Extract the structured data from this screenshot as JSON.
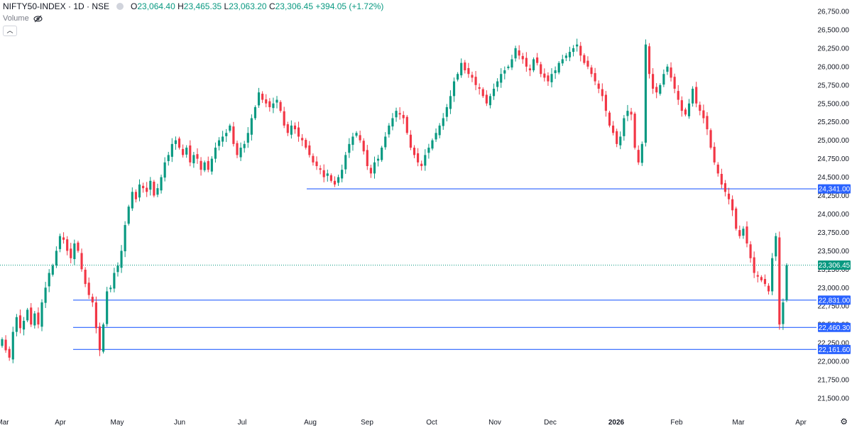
{
  "header": {
    "symbol_line": "NIFTY50-INDEX · 1D · NSE",
    "open_label": "O",
    "open": "23,064.40",
    "high_label": "H",
    "high": "23,465.35",
    "low_label": "L",
    "low": "23,063.20",
    "close_label": "C",
    "close": "23,306.45",
    "change": "+394.05 (+1.72%)"
  },
  "volume_label": "Volume",
  "collapse_icon": "chevron-up-icon",
  "settings_icon": "gear-icon",
  "colors": {
    "up": "#089981",
    "down": "#f23645",
    "level_line": "#2962ff",
    "price_tag": "#089981"
  },
  "chart_data": {
    "type": "candlestick",
    "y_range": [
      21375,
      26800
    ],
    "y_ticks": [
      "26,750.00",
      "26,500.00",
      "26,250.00",
      "26,000.00",
      "25,750.00",
      "25,500.00",
      "25,250.00",
      "25,000.00",
      "24,750.00",
      "24,500.00",
      "24,250.00",
      "24,000.00",
      "23,750.00",
      "23,500.00",
      "23,250.00",
      "23,000.00",
      "22,750.00",
      "22,500.00",
      "22,250.00",
      "22,000.00",
      "21,750.00",
      "21,500.00"
    ],
    "x_labels": [
      "Mar",
      "Apr",
      "May",
      "Jun",
      "Jul",
      "Aug",
      "Sep",
      "Oct",
      "Nov",
      "Dec",
      "2026",
      "Feb",
      "Mar",
      "Apr"
    ],
    "current_price": {
      "value": 23306.45,
      "label": "23,306.45"
    },
    "horizontal_levels": [
      {
        "value": 24341.0,
        "label": "24,341.00",
        "from": "Aug"
      },
      {
        "value": 22831.0,
        "label": "22,831.00",
        "from": "Apr"
      },
      {
        "value": 22460.3,
        "label": "22,460.30",
        "from": "Apr"
      },
      {
        "value": 22161.6,
        "label": "22,161.60",
        "from": "Apr"
      }
    ],
    "closes": [
      22300,
      22150,
      22050,
      22400,
      22600,
      22450,
      22550,
      22700,
      22500,
      22650,
      22500,
      22800,
      23000,
      23200,
      23300,
      23500,
      23700,
      23650,
      23500,
      23400,
      23600,
      23500,
      23250,
      23050,
      22900,
      22800,
      22450,
      22150,
      22500,
      22950,
      23000,
      23200,
      23300,
      23500,
      23850,
      24100,
      24300,
      24200,
      24400,
      24350,
      24300,
      24450,
      24250,
      24350,
      24500,
      24700,
      24800,
      24950,
      25000,
      24900,
      24800,
      24900,
      24700,
      24800,
      24750,
      24600,
      24700,
      24600,
      24750,
      24900,
      25000,
      25050,
      25100,
      25200,
      24950,
      24800,
      24900,
      24950,
      25100,
      25300,
      25450,
      25650,
      25550,
      25500,
      25450,
      25500,
      25550,
      25400,
      25200,
      25100,
      25200,
      25150,
      25050,
      25000,
      24900,
      24800,
      24700,
      24650,
      24600,
      24500,
      24550,
      24450,
      24400,
      24500,
      24600,
      24800,
      24950,
      25050,
      25100,
      25000,
      24850,
      24650,
      24550,
      24700,
      24750,
      24900,
      25050,
      25200,
      25300,
      25400,
      25350,
      25300,
      25100,
      24900,
      24800,
      24700,
      24650,
      24800,
      24900,
      25000,
      25100,
      25200,
      25300,
      25450,
      25600,
      25800,
      25900,
      26050,
      25950,
      25900,
      25850,
      25750,
      25700,
      25600,
      25500,
      25600,
      25700,
      25800,
      25900,
      25950,
      26000,
      26100,
      26250,
      26150,
      26100,
      26000,
      25950,
      26100,
      26050,
      25900,
      25850,
      25800,
      25900,
      25950,
      26050,
      26100,
      26150,
      26200,
      26250,
      26300,
      26150,
      26050,
      26000,
      25900,
      25800,
      25700,
      25600,
      25400,
      25200,
      25100,
      24950,
      25050,
      25300,
      25400,
      25350,
      24900,
      24700,
      24950,
      26300,
      25900,
      25700,
      25650,
      25750,
      25900,
      26000,
      25850,
      25700,
      25550,
      25400,
      25350,
      25500,
      25700,
      25500,
      25400,
      25300,
      25150,
      24900,
      24700,
      24550,
      24400,
      24300,
      24200,
      24050,
      23800,
      23700,
      23800,
      23600,
      23400,
      23200,
      23150,
      23100,
      23050,
      22950,
      23400,
      23700,
      22500,
      22800,
      23306
    ]
  }
}
